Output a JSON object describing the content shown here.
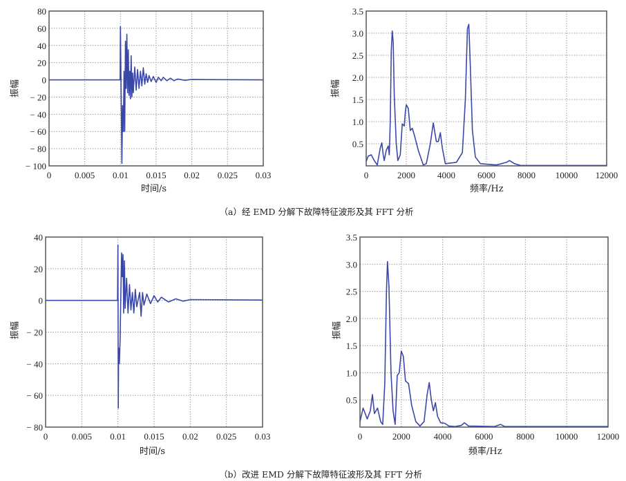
{
  "captions": {
    "a": "（a）经 EMD 分解下故障特征波形及其 FFT 分析",
    "b": "（b）改进 EMD 分解下故障特征波形及其 FFT 分析"
  },
  "colors": {
    "line": "#3b47a6",
    "grid": "#9a9a9a",
    "axis": "#555555"
  },
  "chart_data": [
    {
      "id": "a-waveform",
      "type": "line",
      "title": "",
      "xlabel": "时间/s",
      "ylabel": "振幅",
      "xlim": [
        0,
        0.03
      ],
      "ylim": [
        -100,
        80
      ],
      "grid": true,
      "xticks": [
        0,
        0.005,
        0.01,
        0.015,
        0.02,
        0.025,
        0.03
      ],
      "xtick_labels": [
        "0",
        "0.005",
        "0.01",
        "0.015",
        "0.02",
        "0.025",
        "0.03"
      ],
      "yticks": [
        -100,
        -80,
        -60,
        -40,
        -20,
        0,
        20,
        40,
        60,
        80
      ],
      "ytick_labels": [
        "− 100",
        "− 80",
        "− 60",
        "− 40",
        "− 20",
        "0",
        "20",
        "40",
        "60",
        "80"
      ],
      "series": [
        {
          "name": "waveform",
          "points": [
            [
              0,
              0
            ],
            [
              0.00995,
              0
            ],
            [
              0.01,
              62
            ],
            [
              0.0101,
              -20
            ],
            [
              0.0102,
              -97
            ],
            [
              0.0103,
              -30
            ],
            [
              0.0104,
              -60
            ],
            [
              0.0105,
              10
            ],
            [
              0.0106,
              -60
            ],
            [
              0.0107,
              45
            ],
            [
              0.0108,
              -10
            ],
            [
              0.0109,
              53
            ],
            [
              0.011,
              -15
            ],
            [
              0.0111,
              35
            ],
            [
              0.0112,
              -18
            ],
            [
              0.0113,
              10
            ],
            [
              0.0114,
              -22
            ],
            [
              0.0115,
              28
            ],
            [
              0.0116,
              -20
            ],
            [
              0.0117,
              8
            ],
            [
              0.0118,
              -15
            ],
            [
              0.012,
              15
            ],
            [
              0.0122,
              -12
            ],
            [
              0.0124,
              12
            ],
            [
              0.0126,
              -10
            ],
            [
              0.0128,
              10
            ],
            [
              0.013,
              -7
            ],
            [
              0.0132,
              14
            ],
            [
              0.0134,
              -5
            ],
            [
              0.0136,
              7
            ],
            [
              0.0138,
              -3
            ],
            [
              0.014,
              5
            ],
            [
              0.0143,
              -2
            ],
            [
              0.0146,
              4
            ],
            [
              0.015,
              -3
            ],
            [
              0.0153,
              3
            ],
            [
              0.0157,
              -1
            ],
            [
              0.016,
              3
            ],
            [
              0.0165,
              -1
            ],
            [
              0.017,
              2
            ],
            [
              0.0175,
              -1
            ],
            [
              0.018,
              1
            ],
            [
              0.019,
              -0.5
            ],
            [
              0.02,
              0.5
            ],
            [
              0.022,
              0.3
            ],
            [
              0.03,
              0
            ]
          ]
        }
      ]
    },
    {
      "id": "a-spectrum",
      "type": "line",
      "title": "",
      "xlabel": "频率/Hz",
      "ylabel": "振幅",
      "xlim": [
        0,
        12000
      ],
      "ylim": [
        0,
        3.5
      ],
      "grid": true,
      "xticks": [
        0,
        2000,
        4000,
        6000,
        8000,
        10000,
        12000
      ],
      "xtick_labels": [
        "0",
        "2000",
        "4000",
        "6000",
        "8000",
        "10000",
        "12000"
      ],
      "yticks": [
        0.5,
        1.0,
        1.5,
        2.0,
        2.5,
        3.0,
        3.5
      ],
      "ytick_labels": [
        "0.5",
        "1.0",
        "1.5",
        "2.0",
        "2.5",
        "3.0",
        "3.5"
      ],
      "series": [
        {
          "name": "FFT",
          "points": [
            [
              0,
              0.1
            ],
            [
              100,
              0.22
            ],
            [
              250,
              0.25
            ],
            [
              400,
              0.12
            ],
            [
              550,
              0.02
            ],
            [
              700,
              0.4
            ],
            [
              780,
              0.52
            ],
            [
              850,
              0.25
            ],
            [
              900,
              0.12
            ],
            [
              1000,
              0.35
            ],
            [
              1100,
              0.45
            ],
            [
              1150,
              0.25
            ],
            [
              1200,
              1.0
            ],
            [
              1250,
              2.6
            ],
            [
              1300,
              3.05
            ],
            [
              1350,
              2.8
            ],
            [
              1400,
              1.6
            ],
            [
              1500,
              0.5
            ],
            [
              1580,
              0.12
            ],
            [
              1700,
              0.25
            ],
            [
              1800,
              0.95
            ],
            [
              1900,
              0.9
            ],
            [
              1950,
              1.2
            ],
            [
              2000,
              1.38
            ],
            [
              2100,
              1.3
            ],
            [
              2200,
              0.8
            ],
            [
              2300,
              0.85
            ],
            [
              2400,
              0.7
            ],
            [
              2600,
              0.35
            ],
            [
              2850,
              0.02
            ],
            [
              3000,
              0.05
            ],
            [
              3200,
              0.5
            ],
            [
              3350,
              0.97
            ],
            [
              3500,
              0.55
            ],
            [
              3600,
              0.55
            ],
            [
              3700,
              0.75
            ],
            [
              3800,
              0.4
            ],
            [
              3950,
              0.05
            ],
            [
              4500,
              0.08
            ],
            [
              4800,
              0.3
            ],
            [
              4950,
              1.5
            ],
            [
              5050,
              3.1
            ],
            [
              5120,
              3.2
            ],
            [
              5200,
              2.2
            ],
            [
              5300,
              0.8
            ],
            [
              5450,
              0.2
            ],
            [
              5700,
              0.05
            ],
            [
              6500,
              0.02
            ],
            [
              7000,
              0.08
            ],
            [
              7150,
              0.12
            ],
            [
              7400,
              0.05
            ],
            [
              7700,
              0.01
            ],
            [
              12000,
              0.01
            ]
          ]
        }
      ]
    },
    {
      "id": "b-waveform",
      "type": "line",
      "title": "",
      "xlabel": "时间/s",
      "ylabel": "振幅",
      "xlim": [
        0,
        0.03
      ],
      "ylim": [
        -80,
        40
      ],
      "grid": true,
      "xticks": [
        0,
        0.005,
        0.01,
        0.015,
        0.02,
        0.025,
        0.03
      ],
      "xtick_labels": [
        "0",
        "0.005",
        "0.01",
        "0.015",
        "0.02",
        "0.025",
        "0.03"
      ],
      "yticks": [
        -80,
        -60,
        -40,
        -20,
        0,
        20,
        40
      ],
      "ytick_labels": [
        "− 80",
        "− 60",
        "− 40",
        "− 20",
        "0",
        "20",
        "40"
      ],
      "series": [
        {
          "name": "waveform",
          "points": [
            [
              0,
              0
            ],
            [
              0.00995,
              0
            ],
            [
              0.01,
              35
            ],
            [
              0.01005,
              -68
            ],
            [
              0.0101,
              -30
            ],
            [
              0.0102,
              -40
            ],
            [
              0.0103,
              -25
            ],
            [
              0.0105,
              30
            ],
            [
              0.0106,
              15
            ],
            [
              0.0107,
              29
            ],
            [
              0.0108,
              -8
            ],
            [
              0.0109,
              25
            ],
            [
              0.011,
              -5
            ],
            [
              0.0112,
              14
            ],
            [
              0.0114,
              -8
            ],
            [
              0.0116,
              10
            ],
            [
              0.0118,
              -6
            ],
            [
              0.012,
              5
            ],
            [
              0.0122,
              -8
            ],
            [
              0.0124,
              7
            ],
            [
              0.0126,
              -4
            ],
            [
              0.013,
              5
            ],
            [
              0.0132,
              -10
            ],
            [
              0.0134,
              5
            ],
            [
              0.0136,
              -3
            ],
            [
              0.014,
              4
            ],
            [
              0.0145,
              -2
            ],
            [
              0.015,
              3
            ],
            [
              0.0155,
              -1
            ],
            [
              0.016,
              2
            ],
            [
              0.017,
              -1
            ],
            [
              0.018,
              1
            ],
            [
              0.019,
              -0.5
            ],
            [
              0.02,
              0.5
            ],
            [
              0.03,
              0.2
            ]
          ]
        }
      ]
    },
    {
      "id": "b-spectrum",
      "type": "line",
      "title": "",
      "xlabel": "频率/Hz",
      "ylabel": "振幅",
      "xlim": [
        0,
        12000
      ],
      "ylim": [
        0,
        3.5
      ],
      "grid": true,
      "xticks": [
        0,
        2000,
        4000,
        6000,
        8000,
        10000,
        12000
      ],
      "xtick_labels": [
        "0",
        "2000",
        "4000",
        "6000",
        "8000",
        "10000",
        "12000"
      ],
      "yticks": [
        0.5,
        1.0,
        1.5,
        2.0,
        2.5,
        3.0,
        3.5
      ],
      "ytick_labels": [
        "0.5",
        "1.0",
        "1.5",
        "2.0",
        "2.5",
        "3.0",
        "3.5"
      ],
      "series": [
        {
          "name": "FFT",
          "points": [
            [
              0,
              0.1
            ],
            [
              150,
              0.35
            ],
            [
              350,
              0.15
            ],
            [
              500,
              0.3
            ],
            [
              600,
              0.6
            ],
            [
              700,
              0.25
            ],
            [
              850,
              0.35
            ],
            [
              1000,
              0.1
            ],
            [
              1100,
              0.05
            ],
            [
              1200,
              0.8
            ],
            [
              1280,
              2.5
            ],
            [
              1330,
              3.05
            ],
            [
              1400,
              2.6
            ],
            [
              1500,
              1.0
            ],
            [
              1600,
              0.3
            ],
            [
              1700,
              0.05
            ],
            [
              1800,
              0.95
            ],
            [
              1900,
              1.0
            ],
            [
              2000,
              1.4
            ],
            [
              2100,
              1.3
            ],
            [
              2200,
              0.85
            ],
            [
              2350,
              0.8
            ],
            [
              2500,
              0.4
            ],
            [
              2700,
              0.1
            ],
            [
              2900,
              0.02
            ],
            [
              3100,
              0.1
            ],
            [
              3250,
              0.6
            ],
            [
              3350,
              0.82
            ],
            [
              3450,
              0.5
            ],
            [
              3550,
              0.3
            ],
            [
              3650,
              0.45
            ],
            [
              3750,
              0.2
            ],
            [
              3900,
              0.08
            ],
            [
              4100,
              0.07
            ],
            [
              4300,
              0.02
            ],
            [
              4600,
              0.01
            ],
            [
              4900,
              0.03
            ],
            [
              5050,
              0.08
            ],
            [
              5250,
              0.02
            ],
            [
              6500,
              0.01
            ],
            [
              6800,
              0.05
            ],
            [
              7000,
              0.01
            ],
            [
              12000,
              0.01
            ]
          ]
        }
      ]
    }
  ]
}
